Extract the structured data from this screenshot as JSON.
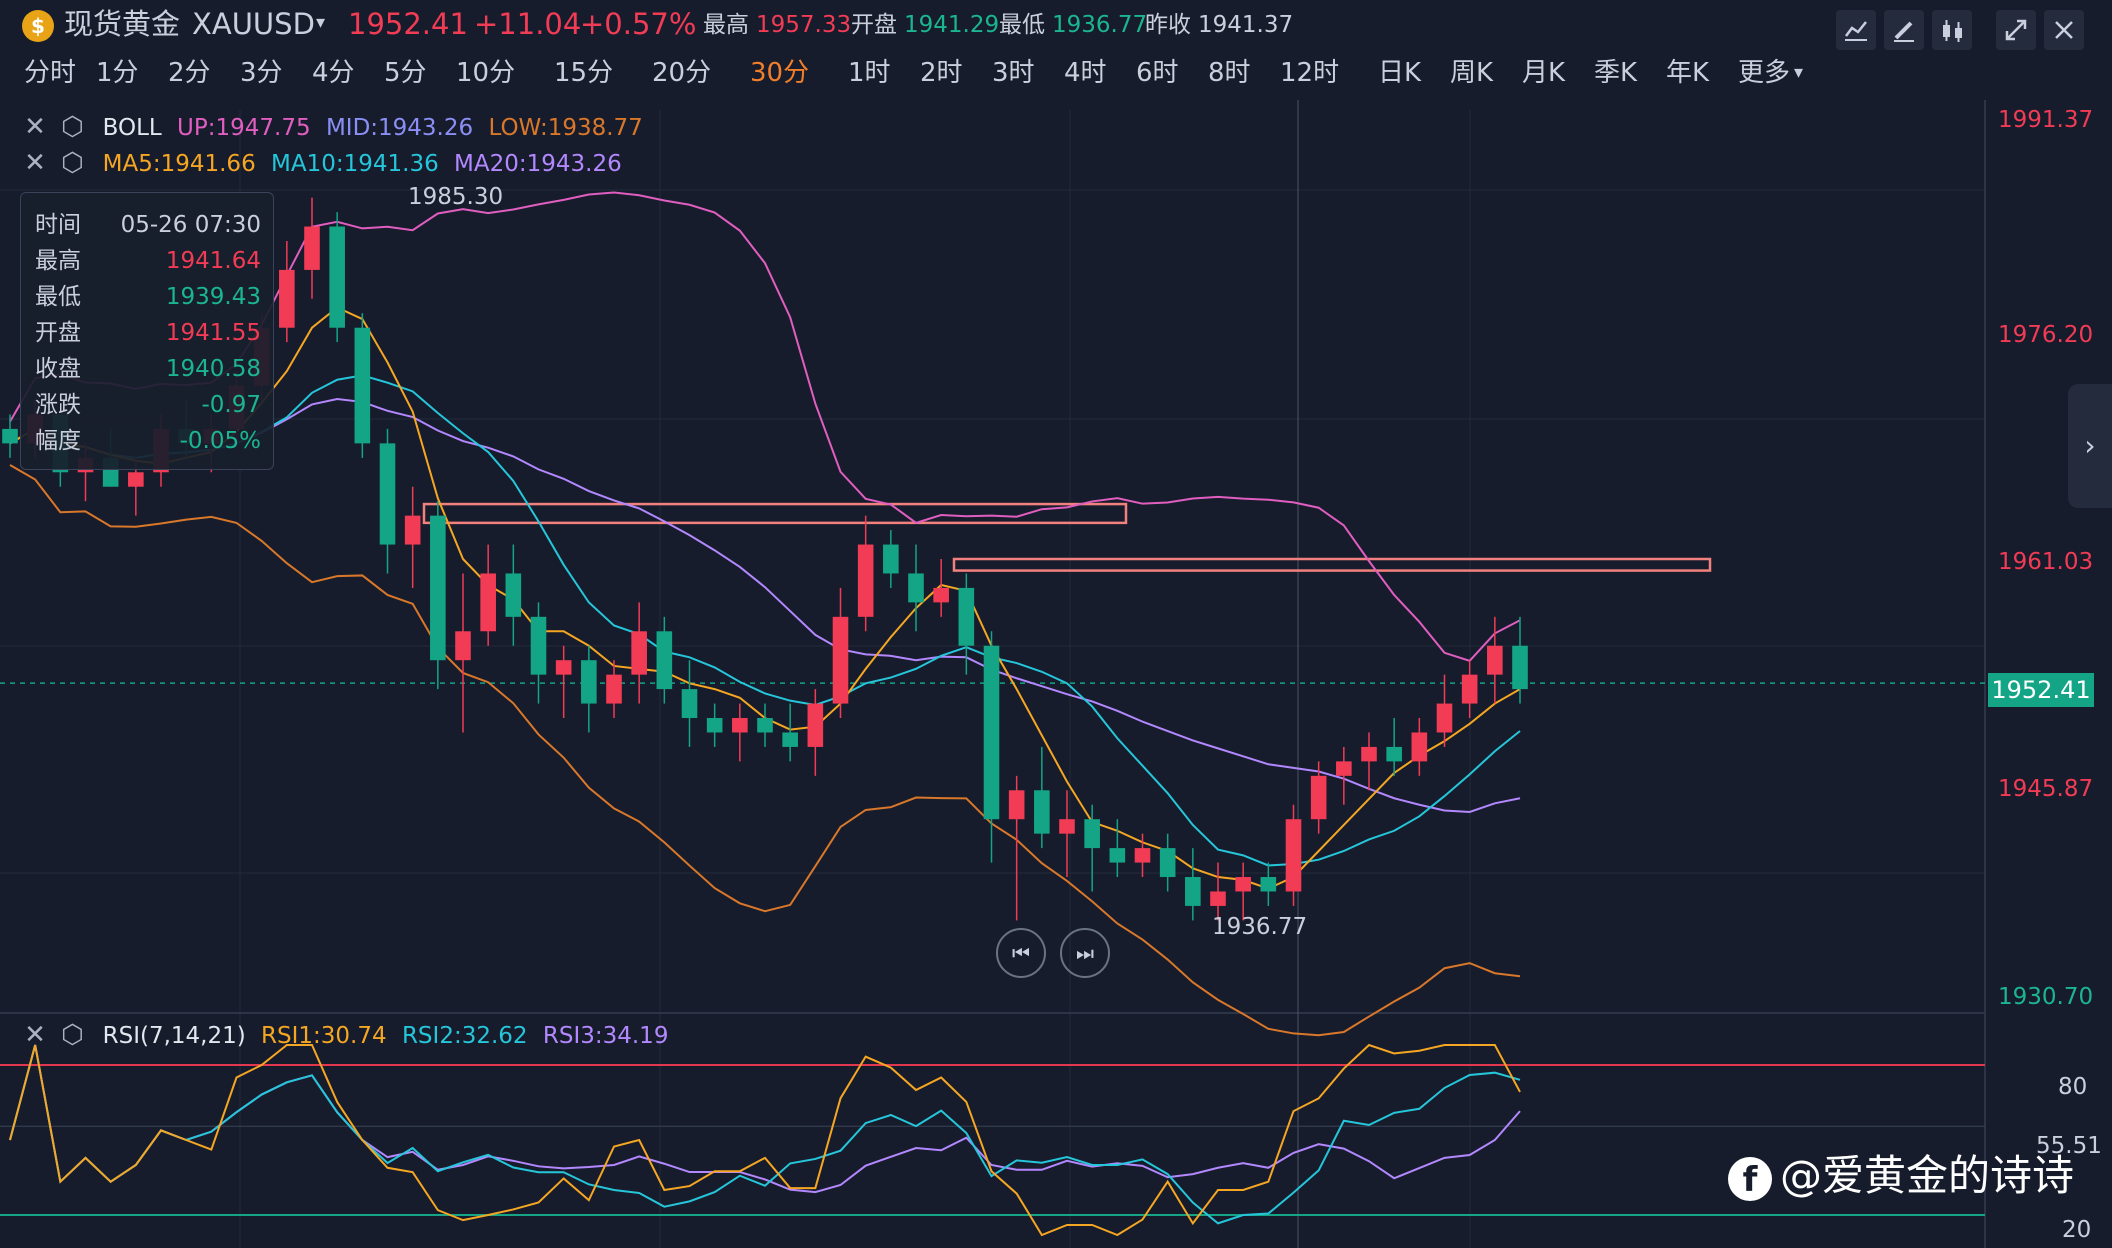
{
  "header": {
    "logo_char": "$",
    "title": "现货黄金",
    "symbol": "XAUUSD",
    "dropdown_icon": "caret-down-icon",
    "price": "1952.41",
    "change": "+11.04",
    "change_pct": "+0.57%",
    "high_label": "最高",
    "high_value": "1957.33",
    "open_label": "开盘",
    "open_value": "1941.29",
    "low_label": "最低",
    "low_value": "1936.77",
    "prev_close_label": "昨收",
    "prev_close_value": "1941.37",
    "tool_icons": [
      "line-chart-icon",
      "pencil-icon",
      "candlestick-icon",
      "collapse-icon",
      "close-icon"
    ]
  },
  "periods": {
    "items": [
      "分时",
      "1分",
      "2分",
      "3分",
      "4分",
      "5分",
      "10分",
      "15分",
      "20分",
      "30分",
      "1时",
      "2时",
      "3时",
      "4时",
      "6时",
      "8时",
      "12时",
      "日K",
      "周K",
      "月K",
      "季K",
      "年K",
      "更多"
    ],
    "active": "30分"
  },
  "indicators": {
    "boll": {
      "name": "BOLL",
      "up": "UP:1947.75",
      "mid": "MID:1943.26",
      "low": "LOW:1938.77"
    },
    "ma": {
      "ma5": "MA5:1941.66",
      "ma10": "MA10:1941.36",
      "ma20": "MA20:1943.26"
    },
    "rsi": {
      "name": "RSI(7,14,21)",
      "rsi1": "RSI1:30.74",
      "rsi2": "RSI2:32.62",
      "rsi3": "RSI3:34.19"
    }
  },
  "tooltip": {
    "time_label": "时间",
    "time_value": "05-26 07:30",
    "high_label": "最高",
    "high_value": "1941.64",
    "low_label": "最低",
    "low_value": "1939.43",
    "open_label": "开盘",
    "open_value": "1941.55",
    "close_label": "收盘",
    "close_value": "1940.58",
    "change_label": "涨跌",
    "change_value": "-0.97",
    "amp_label": "幅度",
    "amp_value": "-0.05%"
  },
  "price_axis": [
    "1991.37",
    "1976.20",
    "1961.03",
    "1945.87",
    "1930.70"
  ],
  "current_price_tag": "1952.41",
  "annotations": {
    "high_mark": "1985.30",
    "low_mark": "1936.77"
  },
  "rsi_axis": [
    "80",
    "55.51",
    "20"
  ],
  "watermark": "@爱黄金的诗诗",
  "colors": {
    "up": "#f23b55",
    "down": "#13a586",
    "boll_up": "#e05ec0",
    "boll_mid": "#8b8ff5",
    "boll_low": "#d9772a",
    "ma5": "#f5a623",
    "ma10": "#26c6da",
    "ma20": "#b388ff",
    "rsi1": "#f5a623",
    "rsi2": "#26c6da",
    "rsi3": "#b388ff",
    "zone": "#f2807e"
  },
  "chart_data": {
    "type": "candlestick",
    "title": "现货黄金 XAUUSD 30分",
    "ylim": [
      1930.7,
      1991.37
    ],
    "current": 1952.41,
    "zones": [
      [
        1963.5,
        1964.8
      ],
      [
        1960.2,
        1961.0
      ]
    ],
    "candles": [
      [
        1970,
        1971,
        1968,
        1969
      ],
      [
        1969,
        1972,
        1968,
        1971
      ],
      [
        1971,
        1971,
        1966,
        1967
      ],
      [
        1967,
        1969,
        1965,
        1968
      ],
      [
        1968,
        1970,
        1966,
        1966
      ],
      [
        1966,
        1968,
        1964,
        1967
      ],
      [
        1967,
        1971,
        1966,
        1970
      ],
      [
        1970,
        1972,
        1968,
        1969
      ],
      [
        1969,
        1971,
        1967,
        1970
      ],
      [
        1970,
        1974,
        1969,
        1973
      ],
      [
        1973,
        1978,
        1972,
        1977
      ],
      [
        1977,
        1983,
        1976,
        1981
      ],
      [
        1981,
        1986,
        1979,
        1984
      ],
      [
        1984,
        1985,
        1976,
        1977
      ],
      [
        1977,
        1978,
        1968,
        1969
      ],
      [
        1969,
        1970,
        1960,
        1962
      ],
      [
        1962,
        1966,
        1959,
        1964
      ],
      [
        1964,
        1965,
        1952,
        1954
      ],
      [
        1954,
        1960,
        1949,
        1956
      ],
      [
        1956,
        1962,
        1955,
        1960
      ],
      [
        1960,
        1962,
        1955,
        1957
      ],
      [
        1957,
        1958,
        1951,
        1953
      ],
      [
        1953,
        1955,
        1950,
        1954
      ],
      [
        1954,
        1955,
        1949,
        1951
      ],
      [
        1951,
        1954,
        1950,
        1953
      ],
      [
        1953,
        1958,
        1951,
        1956
      ],
      [
        1956,
        1957,
        1951,
        1952
      ],
      [
        1952,
        1954,
        1948,
        1950
      ],
      [
        1950,
        1951,
        1948,
        1949
      ],
      [
        1949,
        1951,
        1947,
        1950
      ],
      [
        1950,
        1951,
        1948,
        1949
      ],
      [
        1949,
        1951,
        1947,
        1948
      ],
      [
        1948,
        1952,
        1946,
        1951
      ],
      [
        1951,
        1959,
        1950,
        1957
      ],
      [
        1957,
        1964,
        1956,
        1962
      ],
      [
        1962,
        1963,
        1959,
        1960
      ],
      [
        1960,
        1962,
        1956,
        1958
      ],
      [
        1958,
        1961,
        1957,
        1959
      ],
      [
        1959,
        1960,
        1953,
        1955
      ],
      [
        1955,
        1956,
        1940,
        1943
      ],
      [
        1943,
        1946,
        1936,
        1945
      ],
      [
        1945,
        1948,
        1941,
        1942
      ],
      [
        1942,
        1945,
        1939,
        1943
      ],
      [
        1943,
        1944,
        1938,
        1941
      ],
      [
        1941,
        1943,
        1939,
        1940
      ],
      [
        1940,
        1942,
        1939,
        1941
      ],
      [
        1941,
        1942,
        1938,
        1939
      ],
      [
        1939,
        1941,
        1936,
        1937
      ],
      [
        1937,
        1940,
        1936,
        1938
      ],
      [
        1938,
        1940,
        1936,
        1939
      ],
      [
        1939,
        1940,
        1937,
        1938
      ],
      [
        1938,
        1944,
        1937,
        1943
      ],
      [
        1943,
        1947,
        1942,
        1946
      ],
      [
        1946,
        1948,
        1944,
        1947
      ],
      [
        1947,
        1949,
        1945,
        1948
      ],
      [
        1948,
        1950,
        1946,
        1947
      ],
      [
        1947,
        1950,
        1946,
        1949
      ],
      [
        1949,
        1953,
        1948,
        1951
      ],
      [
        1951,
        1954,
        1950,
        1953
      ],
      [
        1953,
        1957,
        1951,
        1955
      ],
      [
        1955,
        1957,
        1951,
        1952
      ]
    ],
    "rsi_ylim": [
      10,
      90
    ],
    "rsi_levels": [
      80,
      55.51,
      20
    ]
  }
}
